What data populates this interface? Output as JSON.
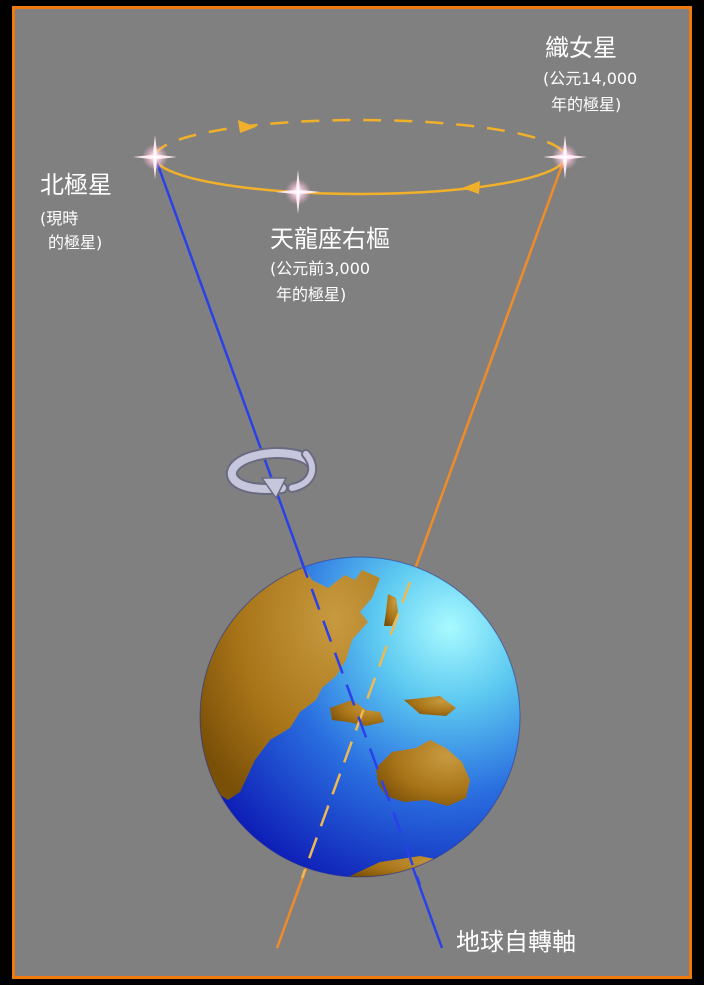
{
  "diagram": {
    "colors": {
      "background": "#808080",
      "border": "#F07A10",
      "black_margin": "#000000",
      "orbit": "#F0B02A",
      "vega_axis": "#F08C28",
      "earth_axis": "#2A40E8",
      "text": "#FFFFFF",
      "ocean_light": "#90F2FA",
      "ocean_dark": "#0A18B8",
      "land": "#A87418",
      "rotation_arrow": "#B8B8D0"
    },
    "stars": {
      "polaris": {
        "name": "北極星",
        "note_line1": "(現時",
        "note_line2": "的極星)"
      },
      "vega": {
        "name": "織女星",
        "note_line1": "(公元14,000",
        "note_line2": "年的極星)"
      },
      "thuban": {
        "name": "天龍座右樞",
        "note_line1": "(公元前3,000",
        "note_line2": "年的極星)"
      }
    },
    "axis_label": "地球自轉軸",
    "icons": {
      "star": "four-point-sparkle-star-icon",
      "rotation": "curved-rotation-arrow-icon",
      "orbit_arrow": "triangle-arrowhead-icon"
    }
  }
}
